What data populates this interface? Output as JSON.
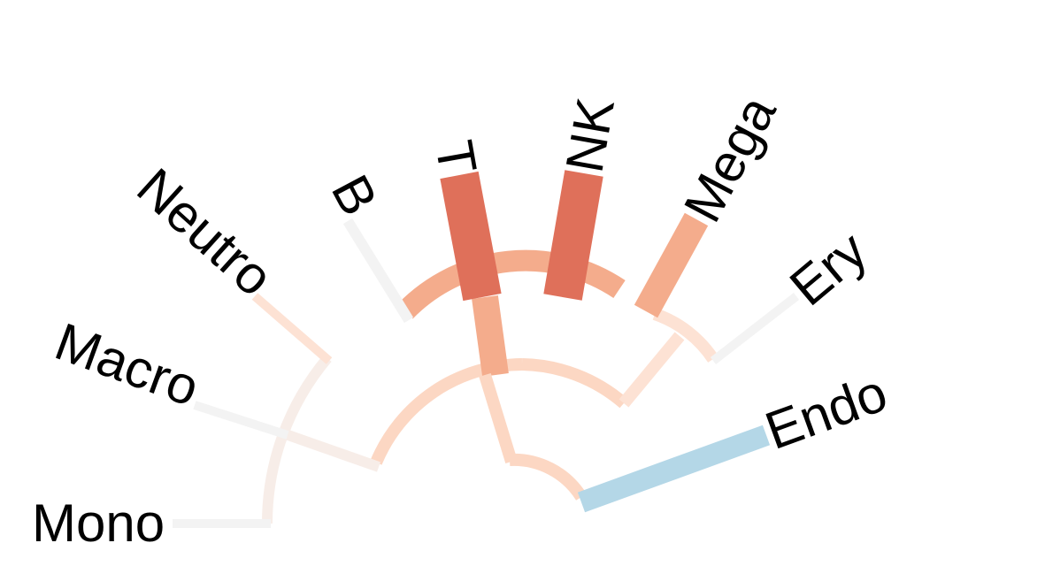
{
  "tree": {
    "colors": {
      "very_pale": "#f3f3f3",
      "pale_rose": "#f7ede8",
      "pale_peach": "#fde2d4",
      "light_peach": "#fcd7c3",
      "salmon": "#f4ac8c",
      "red_orange": "#df705a",
      "light_blue": "#b4d7e7"
    },
    "leaves": [
      {
        "id": "mono",
        "label": "Mono"
      },
      {
        "id": "macro",
        "label": "Macro"
      },
      {
        "id": "neutro",
        "label": "Neutro"
      },
      {
        "id": "b",
        "label": "B"
      },
      {
        "id": "t",
        "label": "T"
      },
      {
        "id": "nk",
        "label": "NK"
      },
      {
        "id": "mega",
        "label": "Mega"
      },
      {
        "id": "ery",
        "label": "Ery"
      },
      {
        "id": "endo",
        "label": "Endo"
      }
    ]
  }
}
